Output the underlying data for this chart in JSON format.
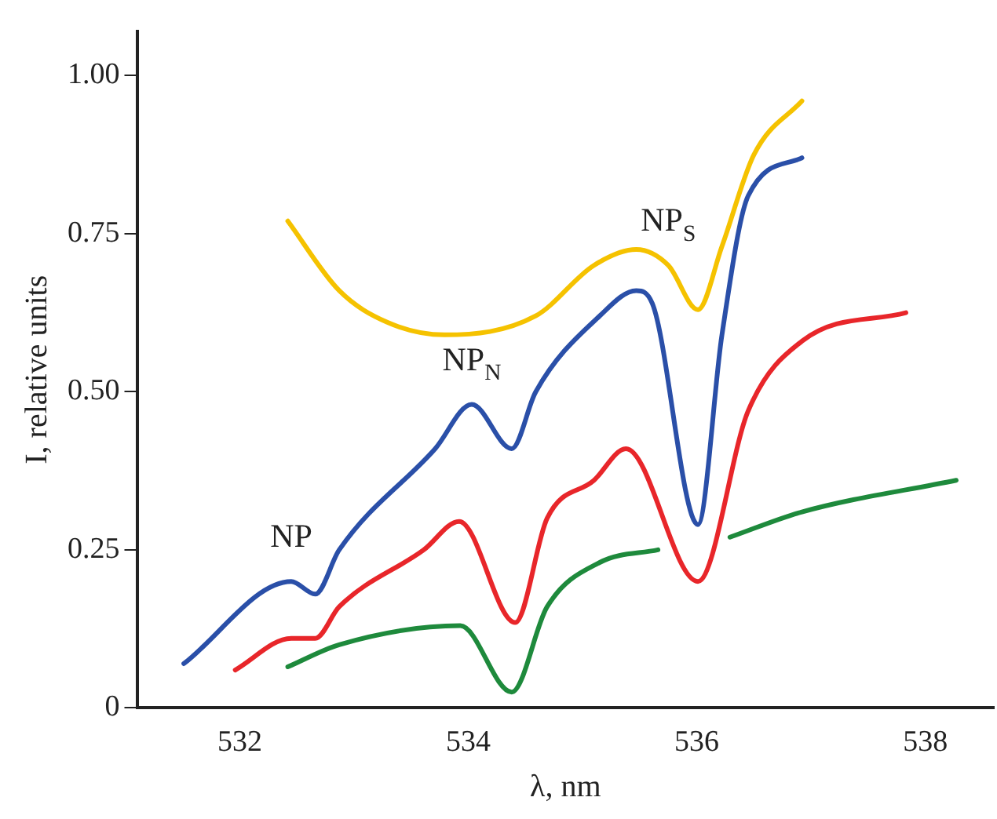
{
  "chart_data": {
    "type": "line",
    "xlabel": "λ, nm",
    "ylabel": "I, relative units",
    "xlim": [
      531.1,
      538.6
    ],
    "ylim": [
      0,
      1.07
    ],
    "xticks": [
      532,
      534,
      536,
      538
    ],
    "yticks": [
      0,
      {
        "value": 0.25,
        "label": "0.25"
      },
      {
        "value": 0.5,
        "label": "0.50"
      },
      {
        "value": 0.75,
        "label": "0.75"
      },
      {
        "value": 1,
        "label": "1.00"
      }
    ],
    "grid": false,
    "legend": false,
    "marker": "none",
    "line_style": "solid",
    "series": [
      {
        "color": "#f5c200",
        "x": [
          532.42,
          532.87,
          533.29,
          533.79,
          534.59,
          535.1,
          535.47,
          535.75,
          536.01,
          536.22,
          536.5,
          536.92
        ],
        "values": [
          0.77,
          0.66,
          0.61,
          0.59,
          0.62,
          0.7,
          0.725,
          0.7,
          0.63,
          0.73,
          0.875,
          0.96
        ]
      },
      {
        "color": "#2a4fa8",
        "x": [
          531.51,
          532.45,
          532.66,
          532.87,
          533.71,
          534.03,
          534.38,
          534.59,
          535.15,
          535.47,
          535.61,
          536.01,
          536.22,
          536.45,
          536.92
        ],
        "values": [
          0.07,
          0.2,
          0.18,
          0.25,
          0.41,
          0.48,
          0.41,
          0.5,
          0.62,
          0.66,
          0.64,
          0.29,
          0.59,
          0.81,
          0.87
        ]
      },
      {
        "color": "#e8262a",
        "x": [
          531.96,
          532.45,
          532.66,
          532.87,
          533.61,
          533.92,
          534.41,
          534.69,
          535.1,
          535.38,
          536.01,
          536.45,
          536.92,
          537.83
        ],
        "values": [
          0.06,
          0.11,
          0.11,
          0.16,
          0.25,
          0.295,
          0.135,
          0.3,
          0.36,
          0.41,
          0.2,
          0.47,
          0.58,
          0.625
        ]
      },
      {
        "color": "#1e8a3c",
        "x": [
          532.42,
          532.87,
          533.93,
          534.38,
          534.69,
          535.15,
          535.66,
          536,
          536.29,
          536.92,
          538.27
        ],
        "values": [
          0.065,
          0.1,
          0.13,
          0.025,
          0.16,
          0.23,
          0.25,
          null,
          0.27,
          0.31,
          0.36
        ]
      }
    ],
    "annotations": [
      {
        "text": "NP",
        "x": 532.45,
        "y": 0.2
      },
      {
        "text": "NP$_{N}$",
        "x": 534.03,
        "y": 0.48
      },
      {
        "text": "NP$_{S}$",
        "x": 535.75,
        "y": 0.7
      }
    ]
  }
}
